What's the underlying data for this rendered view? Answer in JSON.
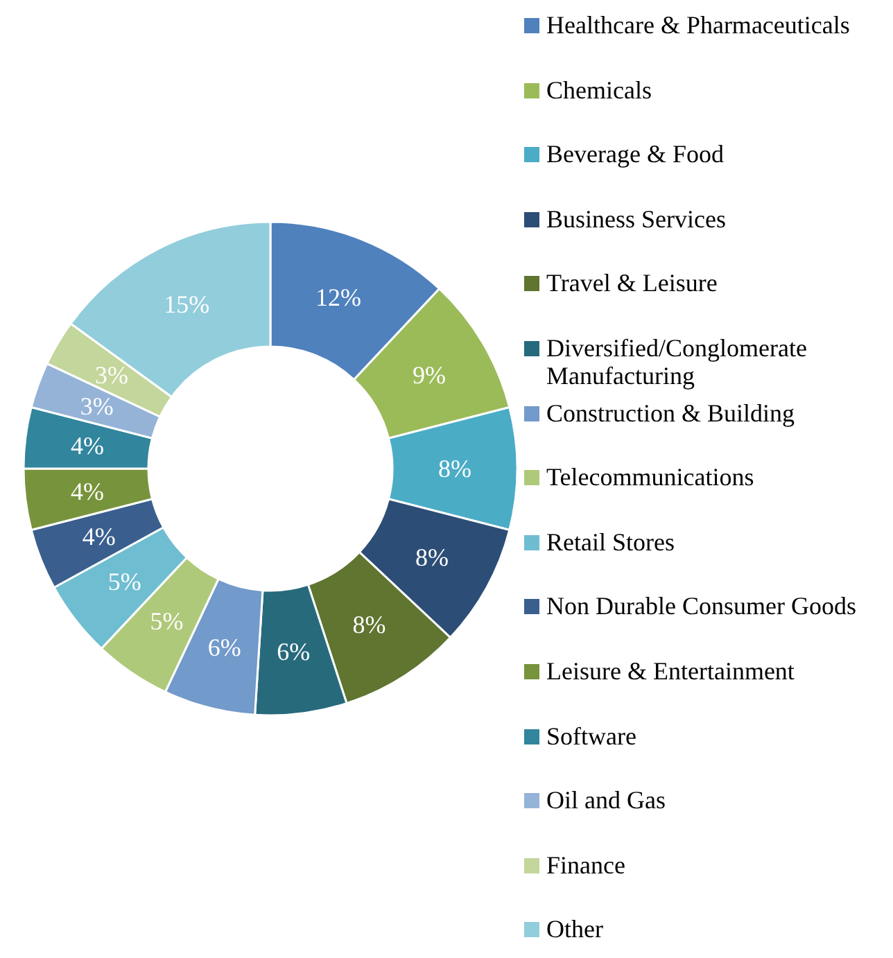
{
  "chart_data": {
    "type": "donut",
    "categories": [
      "Healthcare & Pharmaceuticals",
      "Chemicals",
      "Beverage & Food",
      "Business Services",
      "Travel & Leisure",
      "Diversified/Conglomerate Manufacturing",
      "Construction & Building",
      "Telecommunications",
      "Retail Stores",
      "Non Durable Consumer Goods",
      "Leisure & Entertainment",
      "Software",
      "Oil and Gas",
      "Finance",
      "Other"
    ],
    "values": [
      12,
      9,
      8,
      8,
      8,
      6,
      6,
      5,
      5,
      4,
      4,
      4,
      3,
      3,
      15
    ],
    "value_labels": [
      "12%",
      "9%",
      "8%",
      "8%",
      "8%",
      "6%",
      "6%",
      "5%",
      "5%",
      "4%",
      "4%",
      "4%",
      "3%",
      "3%",
      "15%"
    ],
    "colors": [
      "#4f81bd",
      "#9bbb59",
      "#4bacc6",
      "#2c4d75",
      "#5f7530",
      "#276a7c",
      "#729aca",
      "#afc97a",
      "#6fbdd1",
      "#3a5f8e",
      "#77933c",
      "#31859c",
      "#95b3d7",
      "#c3d69b",
      "#92cddc"
    ],
    "legend": "right"
  }
}
